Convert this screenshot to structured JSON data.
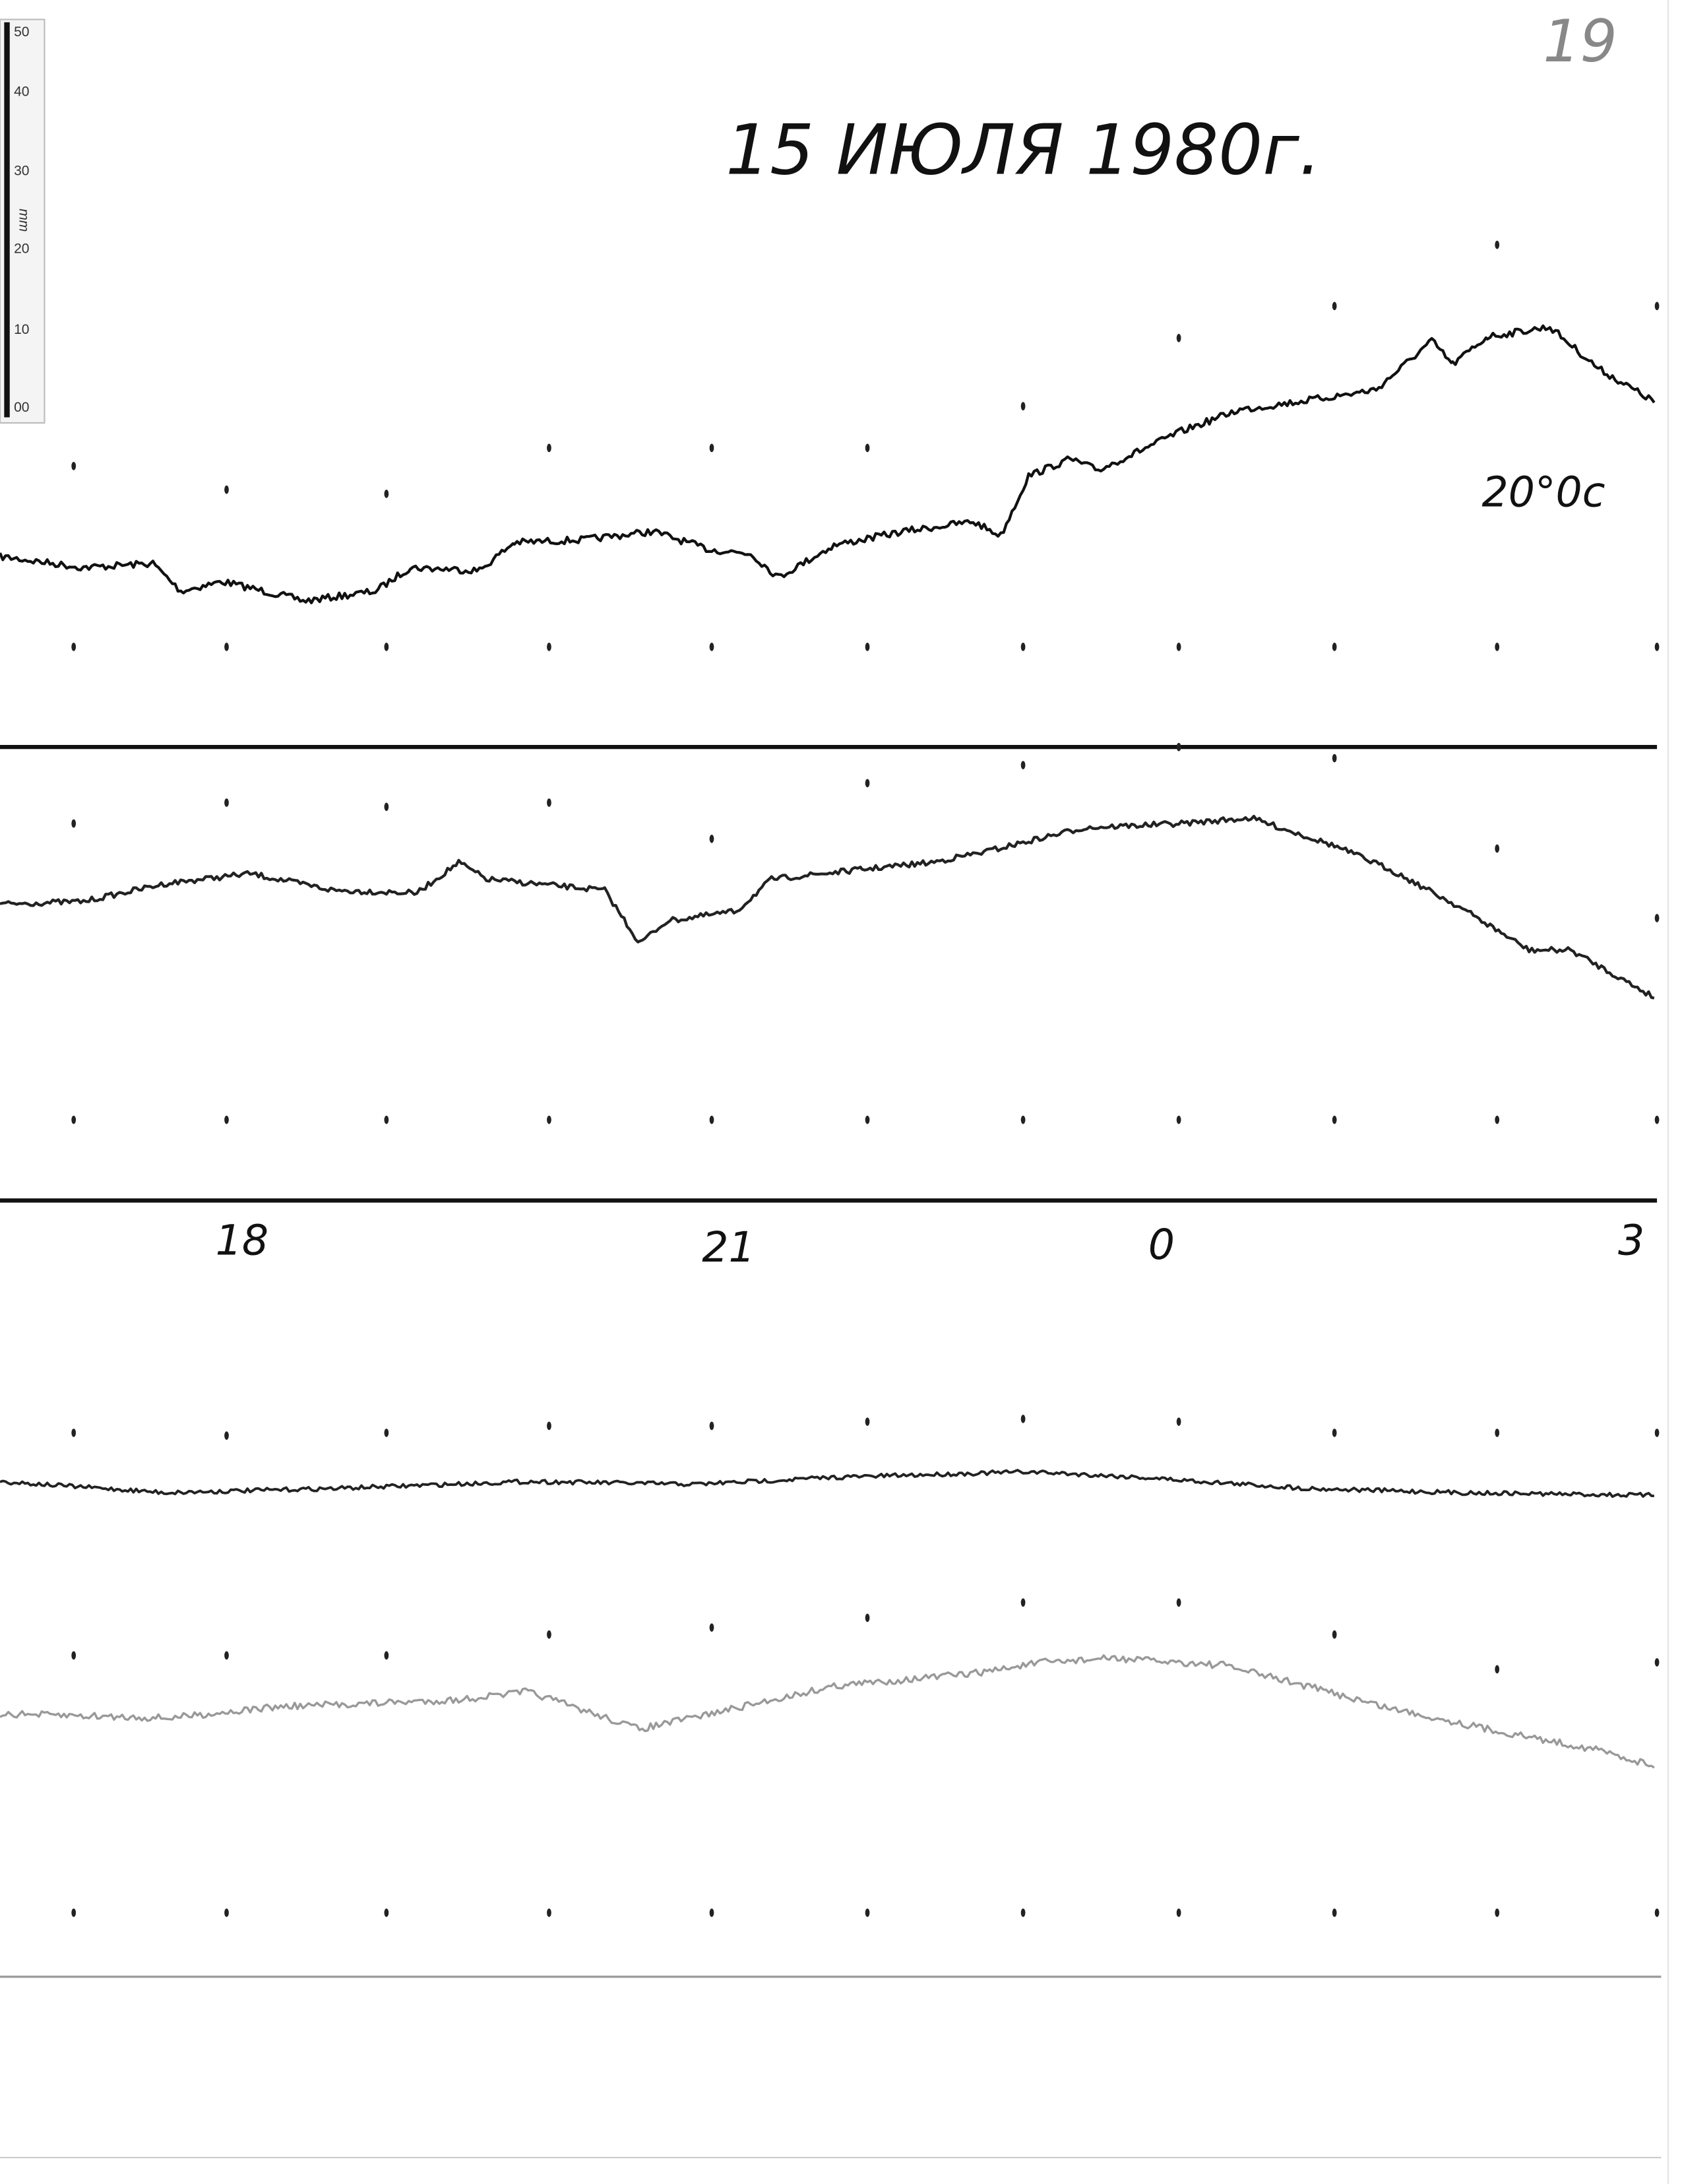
{
  "page_number": "19",
  "title": "15 ИЮЛЯ 1980г.",
  "annotation": "20°0c",
  "time_labels": [
    "18",
    "21",
    "0",
    "3"
  ],
  "ruler": {
    "unit": "mm",
    "labels": [
      "50",
      "40",
      "30",
      "20",
      "10",
      "00"
    ]
  }
}
